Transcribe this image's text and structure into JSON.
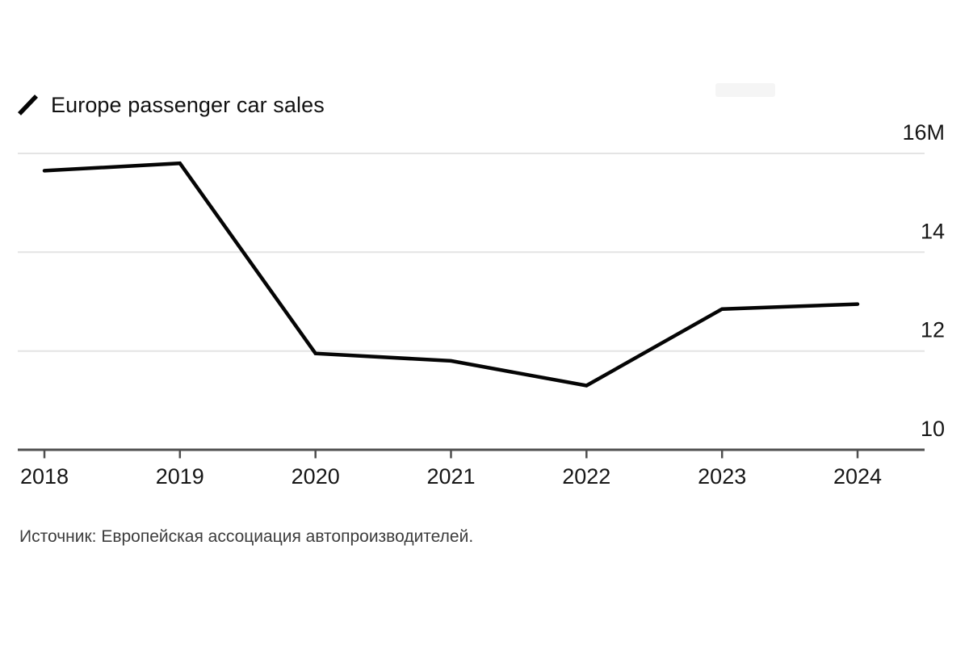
{
  "legend": {
    "label": "Europe passenger car sales"
  },
  "source": {
    "text": "Источник: Европейская ассоциация автопроизводителей."
  },
  "colors": {
    "background": "#ffffff",
    "line": "#050505",
    "grid": "#e4e4e4",
    "axis": "#4f4f4f",
    "tick_label": "#161616",
    "legend_text": "#111111",
    "source_text": "#3c3c3c"
  },
  "chart_data": {
    "type": "line",
    "title": "Europe passenger car sales",
    "categories": [
      "2018",
      "2019",
      "2020",
      "2021",
      "2022",
      "2023",
      "2024"
    ],
    "series": [
      {
        "name": "Europe passenger car sales",
        "values": [
          15.65,
          15.8,
          11.95,
          11.8,
          11.3,
          12.85,
          12.95
        ]
      }
    ],
    "unit": "millions of vehicles",
    "y_ticks": [
      {
        "value": 16,
        "label": "16M"
      },
      {
        "value": 14,
        "label": "14"
      },
      {
        "value": 12,
        "label": "12"
      },
      {
        "value": 10,
        "label": "10"
      }
    ],
    "ylim": [
      10,
      16
    ],
    "grid": "horizontal",
    "legend_position": "top-left",
    "y_axis_side": "right",
    "source": "Источник: Европейская ассоциация автопроизводителей."
  }
}
